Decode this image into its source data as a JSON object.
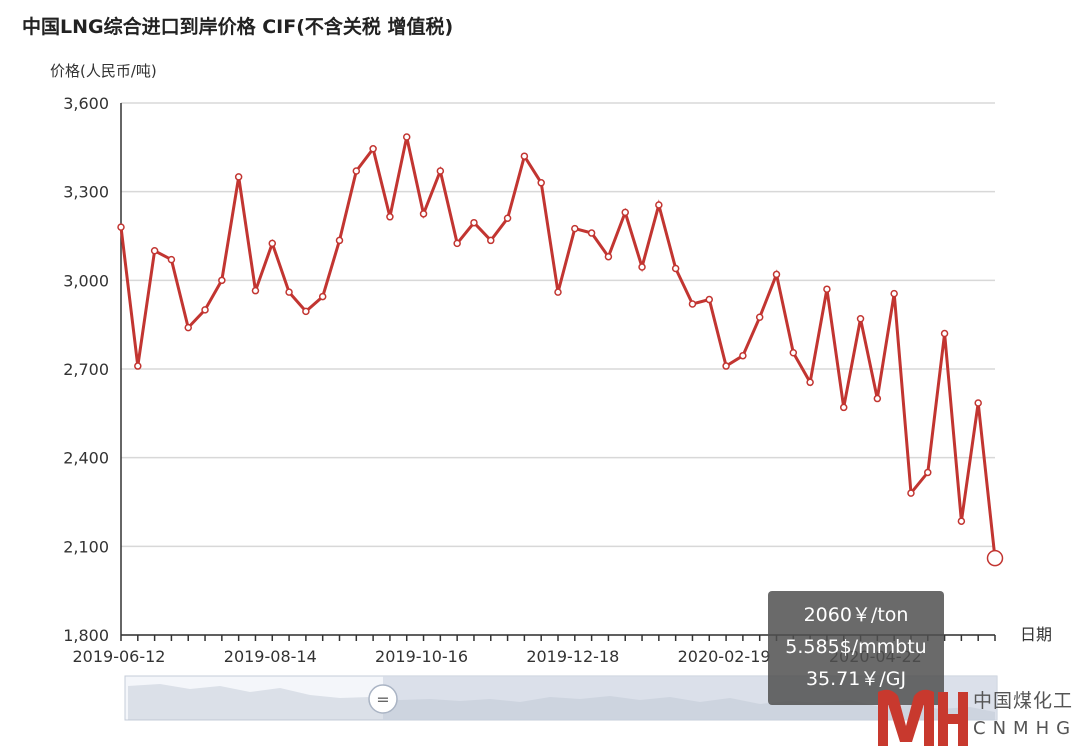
{
  "title": "中国LNG综合进口到岸价格  CIF(不含关税  增值税)",
  "chart_data": {
    "type": "line",
    "ylabel": "价格(人民币/吨)",
    "xlabel": "日期",
    "ylim": [
      1800,
      3600
    ],
    "yticks": [
      "3,600",
      "3,300",
      "3,000",
      "2,700",
      "2,400",
      "2,100",
      "1,800"
    ],
    "xtick_labels": [
      "2019-06-12",
      "2019-08-14",
      "2019-10-16",
      "2019-12-18",
      "2020-02-19",
      "2020-04-22"
    ],
    "grid": true,
    "series": [
      {
        "color": "#c23531",
        "values": [
          3180,
          2710,
          3100,
          3070,
          2840,
          2900,
          3000,
          3350,
          2965,
          3125,
          2960,
          2895,
          2945,
          3135,
          3370,
          3445,
          3215,
          3485,
          3225,
          3370,
          3125,
          3195,
          3135,
          3210,
          3420,
          3330,
          2960,
          3175,
          3160,
          3080,
          3230,
          3045,
          3255,
          3040,
          2920,
          2935,
          2710,
          2745,
          2875,
          3020,
          2755,
          2655,
          2970,
          2570,
          2870,
          2600,
          2955,
          2280,
          2350,
          2820,
          2185,
          2585,
          2060
        ]
      }
    ]
  },
  "tooltip": {
    "line1": "2060￥/ton",
    "line2": "5.585$/mmbtu",
    "line3": "35.71￥/GJ"
  },
  "slider": {
    "handle_label": "="
  },
  "logo": {
    "cn": "中国煤化工",
    "en": "CNMHG"
  }
}
